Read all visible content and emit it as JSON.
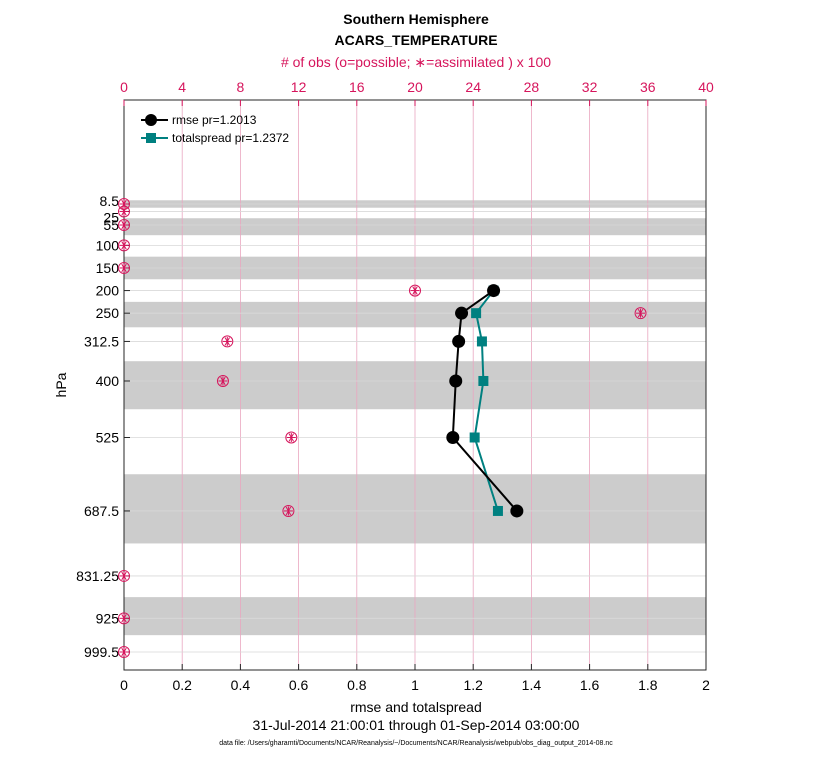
{
  "colors": {
    "rmse": "#000000",
    "spread": "#008080",
    "obs": "#d6155c",
    "band": "#cccccc",
    "grid_top": "#e9a6c0",
    "grid_bottom": "#d9d9d9"
  },
  "chart_data": {
    "type": "line",
    "title": "Southern Hemisphere",
    "subtitle": "ACARS_TEMPERATURE",
    "top_axis_label": "# of obs (o=possible; ∗=assimilated ) x 100",
    "xlabel": "rmse and totalspread",
    "ylabel": "hPa",
    "date_range": "31-Jul-2014 21:00:01 through 01-Sep-2014 03:00:00",
    "data_file": "data file: /Users/gharamti/Documents/NCAR/Reanalysis/~/Documents/NCAR/Reanalysis/webpub/obs_diag_output_2014-08.nc",
    "xlim": [
      0,
      2
    ],
    "top_xlim": [
      0,
      40
    ],
    "x_ticks": [
      0,
      0.2,
      0.4,
      0.6,
      0.8,
      1,
      1.2,
      1.4,
      1.6,
      1.8,
      2
    ],
    "x_tick_labels": [
      "0",
      "0.2",
      "0.4",
      "0.6",
      "0.8",
      "1",
      "1.2",
      "1.4",
      "1.6",
      "1.8",
      "2"
    ],
    "top_ticks": [
      0,
      4,
      8,
      12,
      16,
      20,
      24,
      28,
      32,
      36,
      40
    ],
    "top_tick_labels": [
      "0",
      "4",
      "8",
      "12",
      "16",
      "20",
      "24",
      "28",
      "32",
      "36",
      "40"
    ],
    "levels": [
      8.5,
      25,
      55,
      100,
      150,
      200,
      250,
      312.5,
      400,
      525,
      687.5,
      831.25,
      925,
      999.5
    ],
    "level_labels": [
      "8.5",
      "25",
      "55",
      "100",
      "150",
      "200",
      "250",
      "312.5",
      "400",
      "525",
      "687.5",
      "831.25",
      "925",
      "999.5"
    ],
    "shaded_band_levels": [
      8.5,
      55,
      150,
      250,
      400,
      687.5,
      925
    ],
    "legend": [
      {
        "name": "rmse",
        "label": "rmse pr=1.2013"
      },
      {
        "name": "totalspread",
        "label": "totalspread pr=1.2372"
      }
    ],
    "series": [
      {
        "name": "rmse",
        "levels": [
          200,
          250,
          312.5,
          400,
          525,
          687.5
        ],
        "values": [
          1.27,
          1.16,
          1.15,
          1.14,
          1.13,
          1.35
        ]
      },
      {
        "name": "totalspread",
        "levels": [
          200,
          250,
          312.5,
          400,
          525,
          687.5
        ],
        "values": [
          1.27,
          1.21,
          1.23,
          1.235,
          1.205,
          1.285
        ]
      }
    ],
    "obs_counts_x100": {
      "levels": [
        8.5,
        25,
        55,
        100,
        150,
        200,
        250,
        312.5,
        400,
        525,
        687.5,
        831.25,
        925,
        999.5
      ],
      "values": [
        0,
        0,
        0,
        0,
        0,
        20,
        35.5,
        7.1,
        6.8,
        11.5,
        11.3,
        0,
        0,
        0
      ]
    }
  }
}
